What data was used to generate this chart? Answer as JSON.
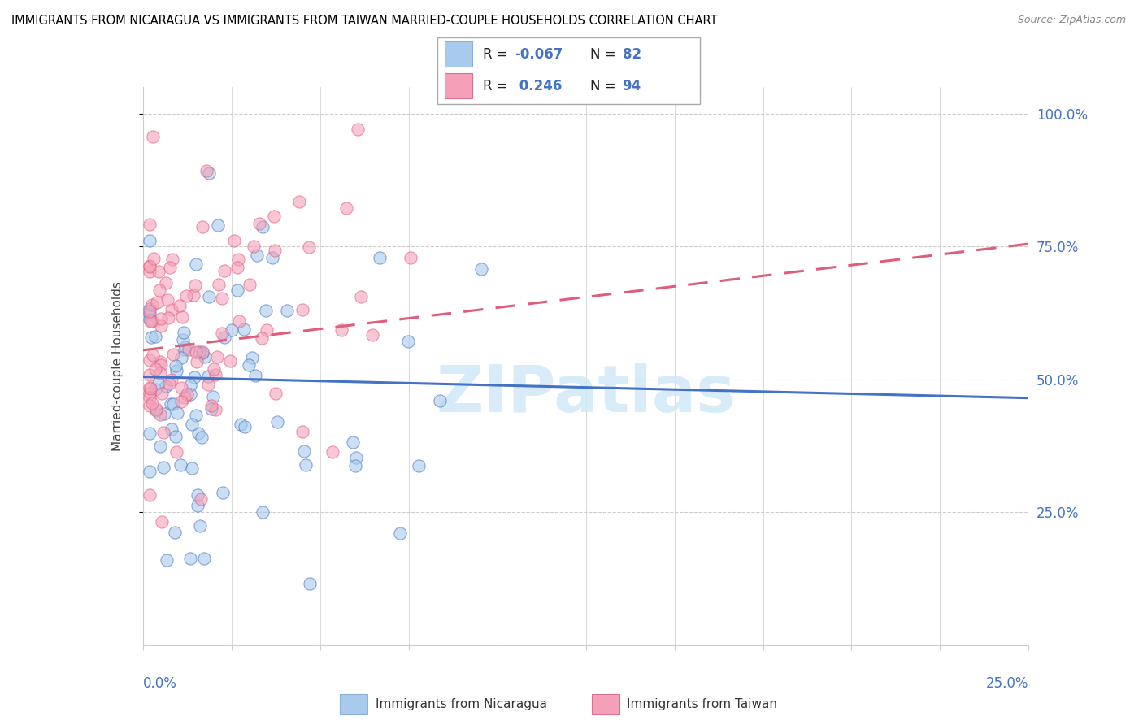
{
  "title": "IMMIGRANTS FROM NICARAGUA VS IMMIGRANTS FROM TAIWAN MARRIED-COUPLE HOUSEHOLDS CORRELATION CHART",
  "source": "Source: ZipAtlas.com",
  "ylabel": "Married-couple Households",
  "R_nicaragua": -0.067,
  "N_nicaragua": 82,
  "R_taiwan": 0.246,
  "N_taiwan": 94,
  "color_nicaragua": "#a8caed",
  "color_taiwan": "#f4a0b8",
  "color_nicaragua_line": "#4472c4",
  "color_taiwan_line": "#e05c7a",
  "watermark_color": "#d0e8f8",
  "right_yticklabels": [
    "25.0%",
    "50.0%",
    "75.0%",
    "100.0%"
  ],
  "right_yticks": [
    0.25,
    0.5,
    0.75,
    1.0
  ],
  "xmin": 0.0,
  "xmax": 0.25,
  "ymin": 0.0,
  "ymax": 1.05,
  "nic_line_x0": 0.0,
  "nic_line_x1": 0.25,
  "nic_line_y0": 0.505,
  "nic_line_y1": 0.465,
  "tai_line_x0": 0.0,
  "tai_line_x1": 0.25,
  "tai_line_y0": 0.555,
  "tai_line_y1": 0.755
}
